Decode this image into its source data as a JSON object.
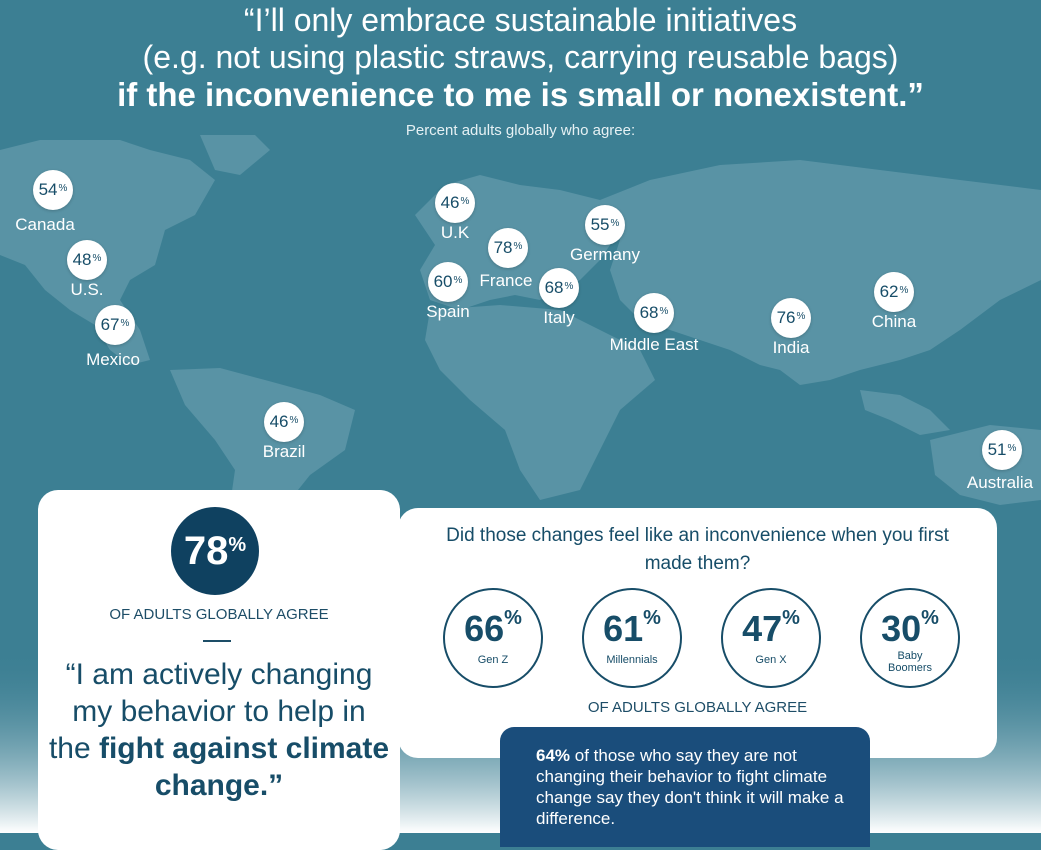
{
  "header": {
    "line1": "“I’ll only embrace sustainable initiatives",
    "line2": "(e.g. not using plastic straws, carrying reusable bags)",
    "line3": "if the inconvenience to me is small or nonexistent.”",
    "subtitle": "Percent adults globally who agree:"
  },
  "map_markers": [
    {
      "label": "Canada",
      "value": "54",
      "unit": "%"
    },
    {
      "label": "U.S.",
      "value": "48",
      "unit": "%"
    },
    {
      "label": "Mexico",
      "value": "67",
      "unit": "%"
    },
    {
      "label": "Brazil",
      "value": "46",
      "unit": "%"
    },
    {
      "label": "U.K",
      "value": "46",
      "unit": "%"
    },
    {
      "label": "France",
      "value": "78",
      "unit": "%"
    },
    {
      "label": "Spain",
      "value": "60",
      "unit": "%"
    },
    {
      "label": "Germany",
      "value": "55",
      "unit": "%"
    },
    {
      "label": "Italy",
      "value": "68",
      "unit": "%"
    },
    {
      "label": "Middle East",
      "value": "68",
      "unit": "%"
    },
    {
      "label": "India",
      "value": "76",
      "unit": "%"
    },
    {
      "label": "China",
      "value": "62",
      "unit": "%"
    },
    {
      "label": "Australia",
      "value": "51",
      "unit": "%"
    }
  ],
  "left_card": {
    "percent": "78",
    "unit": "%",
    "agree_text": "OF ADULTS GLOBALLY AGREE",
    "quote_part1": "“I am actively changing my behavior to help in the ",
    "quote_bold": "fight against climate change.”"
  },
  "right_card": {
    "question": "Did those changes feel like an inconvenience when you first made them?",
    "generations": [
      {
        "value": "66",
        "unit": "%",
        "label": "Gen Z"
      },
      {
        "value": "61",
        "unit": "%",
        "label": "Millennials"
      },
      {
        "value": "47",
        "unit": "%",
        "label": "Gen X"
      },
      {
        "value": "30",
        "unit": "%",
        "label": "Baby Boomers"
      }
    ],
    "agree_text": "OF ADULTS GLOBALLY AGREE"
  },
  "callout": {
    "bold": "64%",
    "text": " of those who say they are not changing their behavior to fight climate change say they don't think it will make a difference."
  },
  "colors": {
    "background": "#3c7f93",
    "land": "#5993a5",
    "navy": "#0f4160",
    "callout_blue": "#1a4d7b"
  }
}
